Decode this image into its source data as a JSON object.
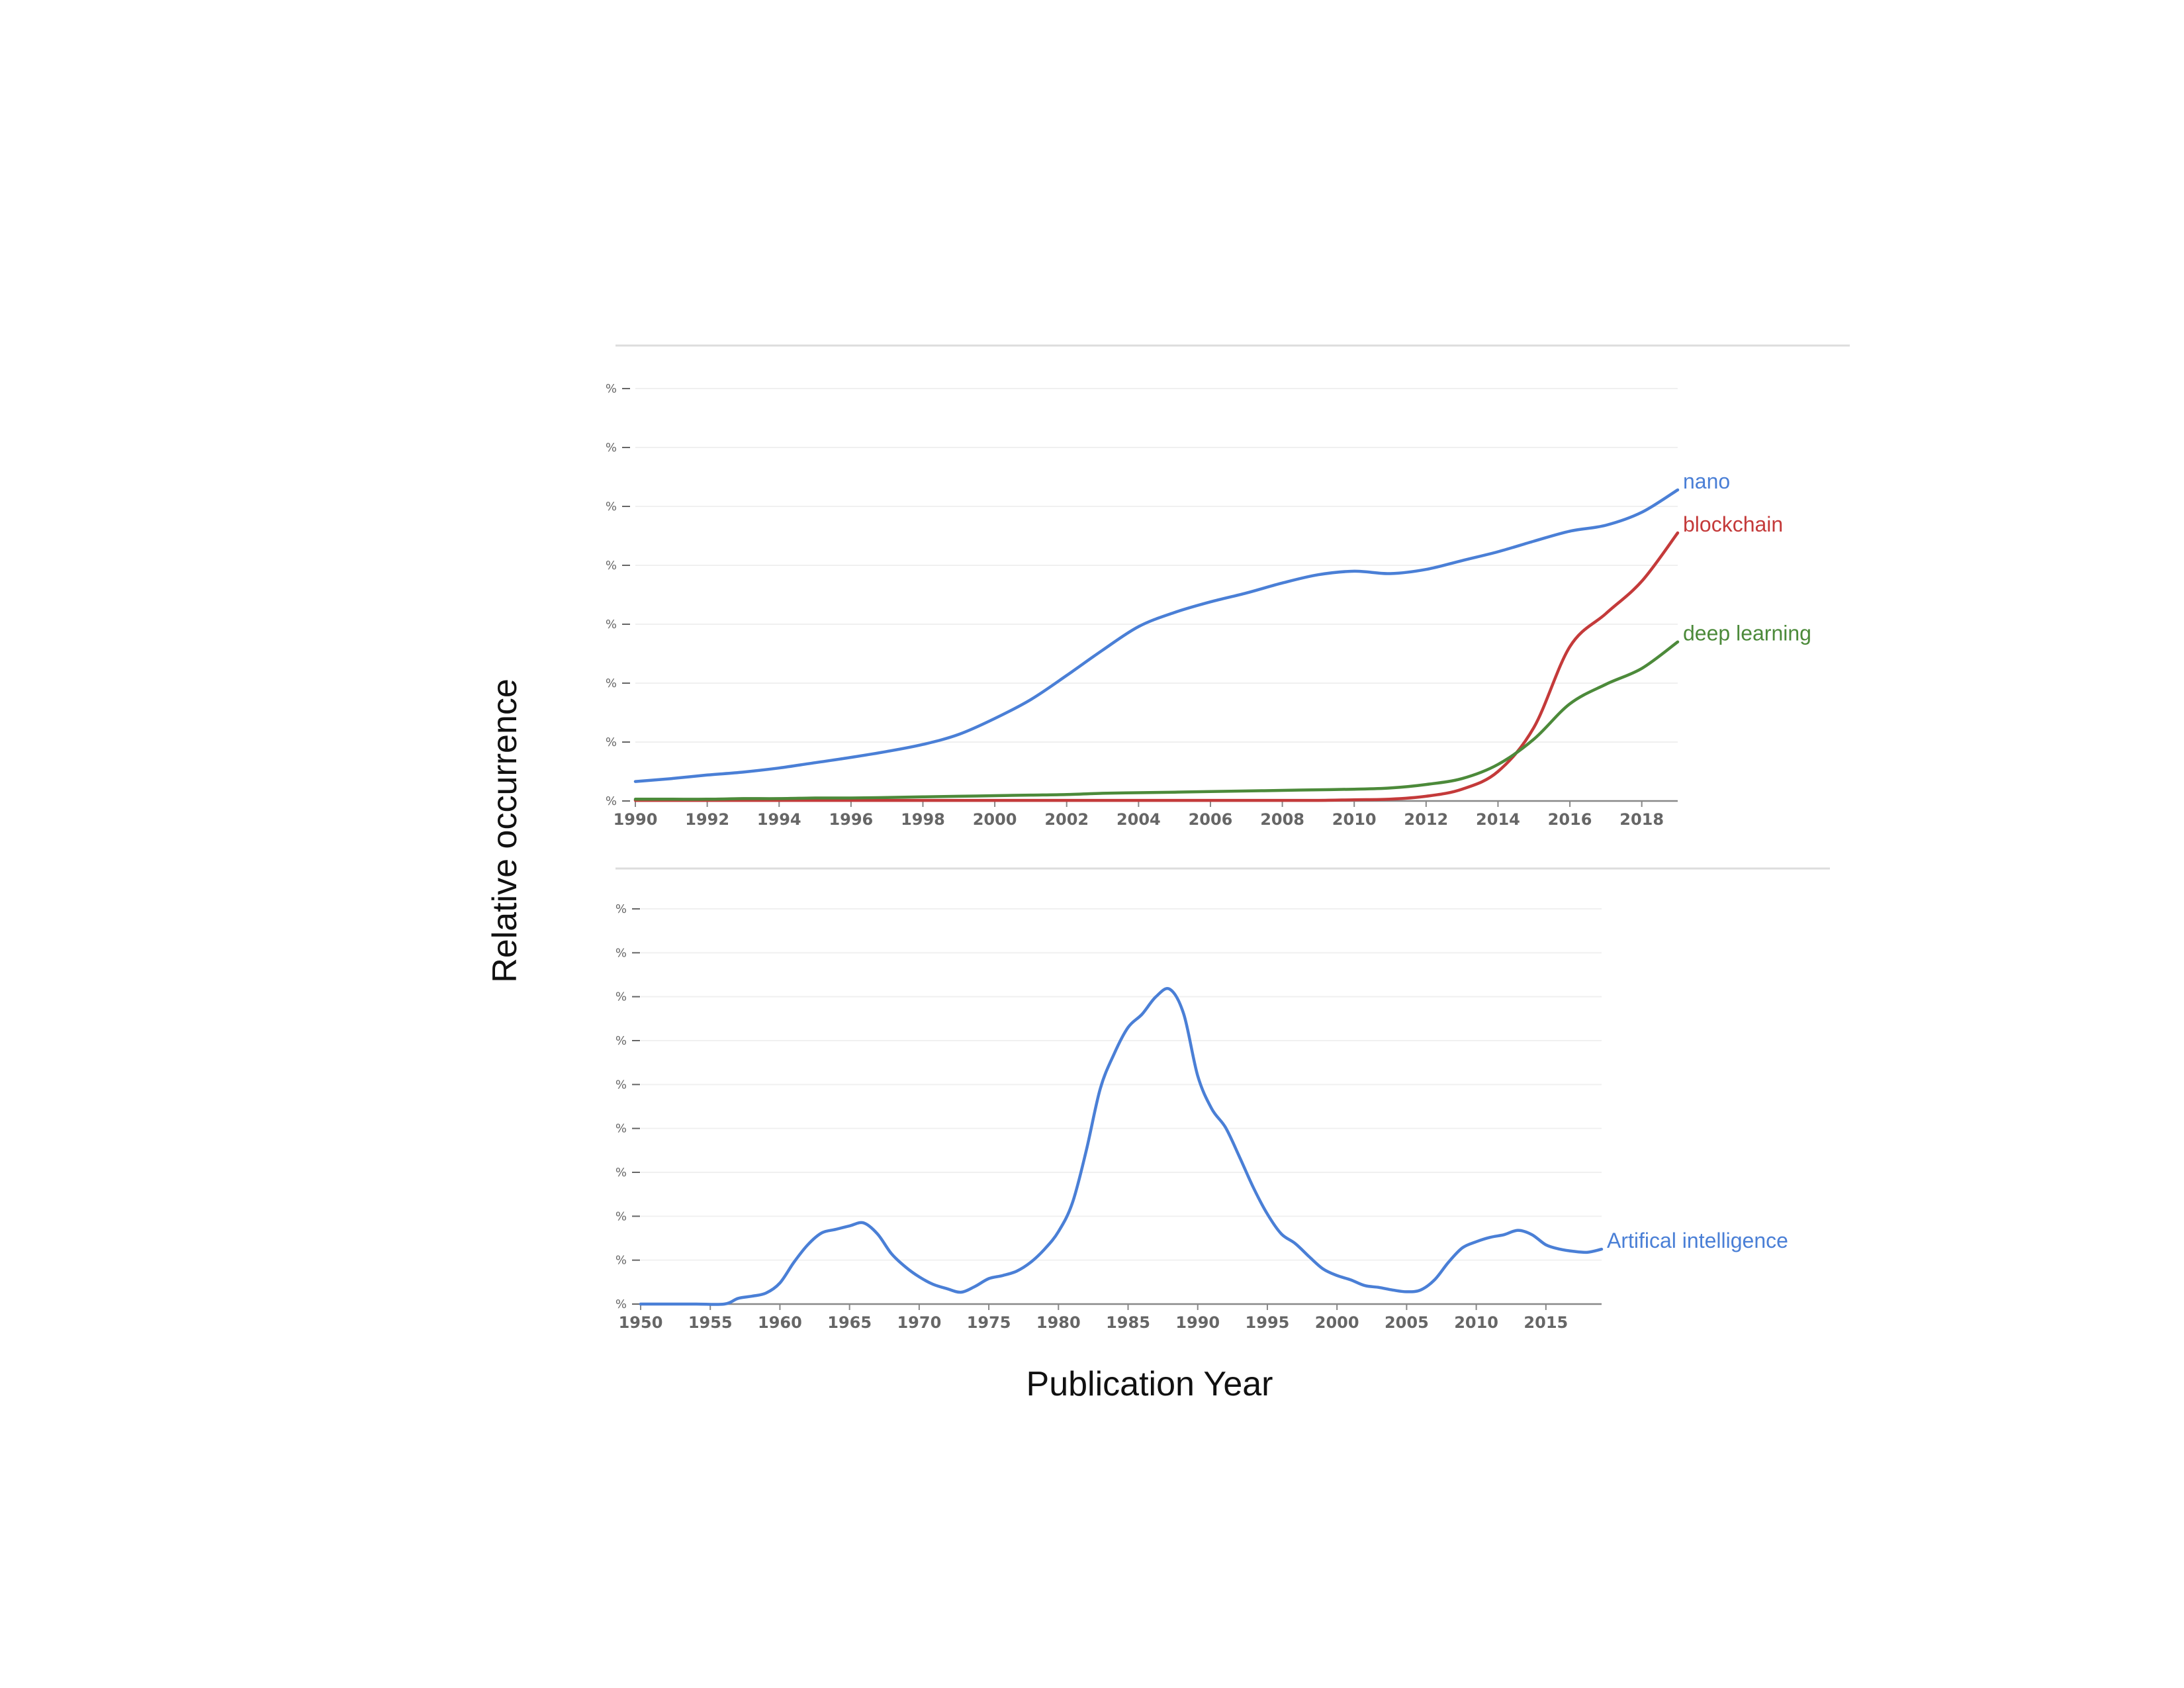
{
  "ylabel": "Relative occurrence",
  "xlabel": "Publication Year",
  "chart_data": [
    {
      "type": "line",
      "x_ticks": [
        "1990",
        "1992",
        "1994",
        "1996",
        "1998",
        "2000",
        "2002",
        "2004",
        "2006",
        "2008",
        "2010",
        "2012",
        "2014",
        "2016",
        "2018"
      ],
      "y_ticks": [
        "%",
        "%",
        "%",
        "%",
        "%",
        "%",
        "%",
        "%"
      ],
      "xlim": [
        1990,
        2019
      ],
      "ylim": [
        0,
        7
      ],
      "grid": true,
      "legend": "inline labels at line ends",
      "x": [
        1990,
        1991,
        1992,
        1993,
        1994,
        1995,
        1996,
        1997,
        1998,
        1999,
        2000,
        2001,
        2002,
        2003,
        2004,
        2005,
        2006,
        2007,
        2008,
        2009,
        2010,
        2011,
        2012,
        2013,
        2014,
        2015,
        2016,
        2017,
        2018,
        2019
      ],
      "series": [
        {
          "name": "nano",
          "color": "#4a7fd6",
          "values": [
            0.33,
            0.38,
            0.44,
            0.49,
            0.56,
            0.65,
            0.74,
            0.84,
            0.96,
            1.13,
            1.4,
            1.72,
            2.13,
            2.56,
            2.96,
            3.2,
            3.38,
            3.53,
            3.7,
            3.84,
            3.9,
            3.86,
            3.93,
            4.08,
            4.23,
            4.41,
            4.58,
            4.68,
            4.9,
            5.28
          ]
        },
        {
          "name": "blockchain",
          "color": "#c43a3a",
          "values": [
            0.01,
            0.01,
            0.01,
            0.01,
            0.01,
            0.01,
            0.01,
            0.01,
            0.01,
            0.01,
            0.01,
            0.01,
            0.01,
            0.01,
            0.01,
            0.01,
            0.01,
            0.01,
            0.01,
            0.01,
            0.02,
            0.03,
            0.08,
            0.2,
            0.5,
            1.25,
            2.62,
            3.18,
            3.73,
            4.55
          ]
        },
        {
          "name": "deep learning",
          "color": "#4c8a3a",
          "values": [
            0.03,
            0.03,
            0.03,
            0.04,
            0.04,
            0.05,
            0.05,
            0.06,
            0.07,
            0.08,
            0.09,
            0.1,
            0.11,
            0.13,
            0.14,
            0.15,
            0.16,
            0.17,
            0.18,
            0.19,
            0.2,
            0.22,
            0.28,
            0.38,
            0.62,
            1.05,
            1.65,
            1.98,
            2.25,
            2.7
          ]
        }
      ]
    },
    {
      "type": "line",
      "x_ticks": [
        "1950",
        "1955",
        "1960",
        "1965",
        "1970",
        "1975",
        "1980",
        "1985",
        "1990",
        "1995",
        "2000",
        "2005",
        "2010",
        "2015"
      ],
      "y_ticks": [
        "%",
        "%",
        "%",
        "%",
        "%",
        "%",
        "%",
        "%",
        "%",
        "%"
      ],
      "xlim": [
        1950,
        2019
      ],
      "ylim": [
        0,
        9
      ],
      "grid": true,
      "legend": "inline label at line end",
      "x": [
        1950,
        1952,
        1954,
        1956,
        1957,
        1958,
        1959,
        1960,
        1961,
        1962,
        1963,
        1964,
        1965,
        1966,
        1967,
        1968,
        1969,
        1970,
        1971,
        1972,
        1973,
        1974,
        1975,
        1976,
        1977,
        1978,
        1979,
        1980,
        1981,
        1982,
        1983,
        1984,
        1985,
        1986,
        1987,
        1988,
        1989,
        1990,
        1991,
        1992,
        1993,
        1994,
        1995,
        1996,
        1997,
        1998,
        1999,
        2000,
        2001,
        2002,
        2003,
        2004,
        2005,
        2006,
        2007,
        2008,
        2009,
        2010,
        2011,
        2012,
        2013,
        2014,
        2015,
        2016,
        2017,
        2018,
        2019
      ],
      "series": [
        {
          "name": "Artifical intelligence",
          "color": "#4a7fd6",
          "values": [
            0.0,
            0.0,
            0.0,
            0.0,
            0.13,
            0.18,
            0.25,
            0.48,
            0.95,
            1.35,
            1.62,
            1.7,
            1.78,
            1.85,
            1.6,
            1.15,
            0.85,
            0.62,
            0.45,
            0.35,
            0.27,
            0.4,
            0.58,
            0.65,
            0.75,
            0.95,
            1.25,
            1.65,
            2.3,
            3.5,
            4.9,
            5.7,
            6.3,
            6.6,
            7.0,
            7.17,
            6.6,
            5.2,
            4.45,
            4.02,
            3.35,
            2.65,
            2.05,
            1.6,
            1.38,
            1.08,
            0.8,
            0.65,
            0.55,
            0.42,
            0.38,
            0.32,
            0.28,
            0.32,
            0.55,
            0.95,
            1.28,
            1.42,
            1.52,
            1.58,
            1.68,
            1.58,
            1.35,
            1.25,
            1.2,
            1.18,
            1.25
          ]
        }
      ]
    }
  ]
}
